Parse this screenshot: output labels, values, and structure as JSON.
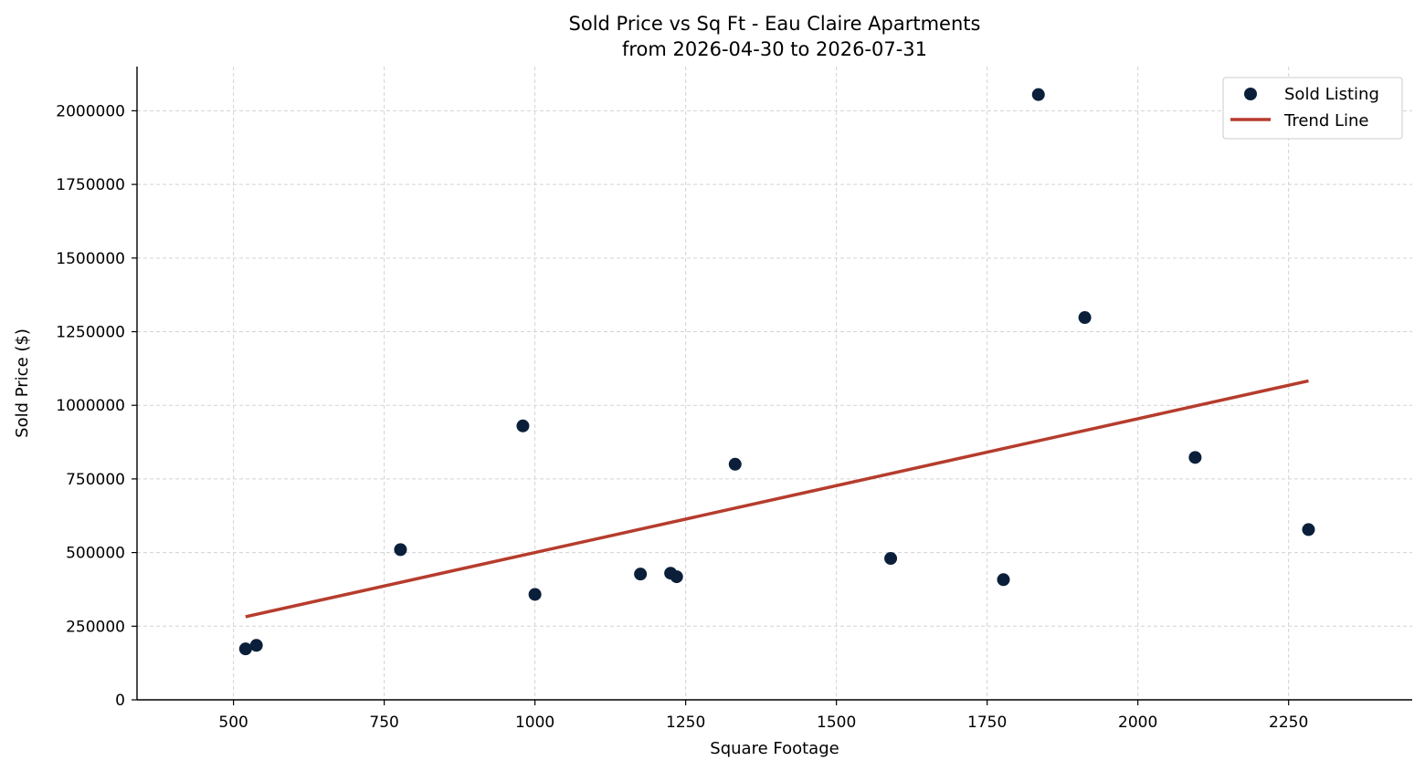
{
  "chart_data": {
    "type": "scatter",
    "title": "Sold Price vs Sq Ft - Eau Claire Apartments",
    "subtitle": "from 2026-04-30 to 2026-07-31",
    "xlabel": "Square Footage",
    "ylabel": "Sold Price ($)",
    "xlim": [
      340,
      2455
    ],
    "ylim": [
      0,
      2150000
    ],
    "xticks": [
      500,
      750,
      1000,
      1250,
      1500,
      1750,
      2000,
      2250
    ],
    "yticks": [
      0,
      250000,
      500000,
      750000,
      1000000,
      1250000,
      1500000,
      1750000,
      2000000
    ],
    "grid": true,
    "legend_position": "top-right",
    "series": [
      {
        "name": "Sold Listing",
        "kind": "scatter",
        "color": "#0b1f3a",
        "points": [
          {
            "x": 520,
            "y": 173000
          },
          {
            "x": 538,
            "y": 185000
          },
          {
            "x": 777,
            "y": 510000
          },
          {
            "x": 980,
            "y": 930000
          },
          {
            "x": 1000,
            "y": 358000
          },
          {
            "x": 1175,
            "y": 427000
          },
          {
            "x": 1225,
            "y": 430000
          },
          {
            "x": 1235,
            "y": 418000
          },
          {
            "x": 1332,
            "y": 800000
          },
          {
            "x": 1590,
            "y": 480000
          },
          {
            "x": 1777,
            "y": 408000
          },
          {
            "x": 1835,
            "y": 2055000
          },
          {
            "x": 1912,
            "y": 1298000
          },
          {
            "x": 2095,
            "y": 823000
          },
          {
            "x": 2283,
            "y": 578000
          }
        ]
      },
      {
        "name": "Trend Line",
        "kind": "line",
        "color": "#b63c2d",
        "points": [
          {
            "x": 520,
            "y": 282000
          },
          {
            "x": 2283,
            "y": 1083000
          }
        ]
      }
    ]
  }
}
